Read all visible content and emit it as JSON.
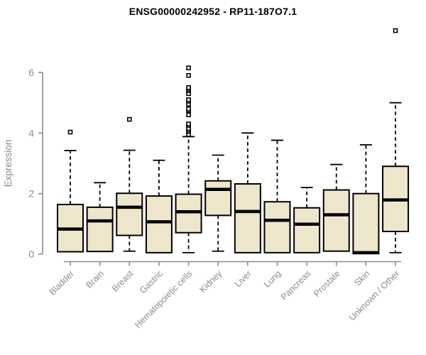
{
  "title": "ENSG00000242952 - RP11-187O7.1",
  "colors": {
    "box_fill": "#EDE6CB",
    "box_stroke": "#000000",
    "median_stroke": "#000000",
    "whisker_stroke": "#000000",
    "outlier_stroke": "#000000",
    "axis_color": "#8C8C8C",
    "tick_label_color": "#8C8C8C",
    "title_color": "#000000"
  },
  "chart_data": {
    "type": "boxplot",
    "title": "ENSG00000242952 - RP11-187O7.1",
    "xlabel": "",
    "ylabel": "Expression",
    "ylim": [
      0,
      6
    ],
    "yticks": [
      0,
      2,
      4,
      6
    ],
    "grid": false,
    "legend": false,
    "categories": [
      "Bladder",
      "Brain",
      "Breast",
      "Gastric",
      "Hematopoietic cells",
      "Kidney",
      "Liver",
      "Lung",
      "Pancreas",
      "Prostate",
      "Skin",
      "Unknown / Other"
    ],
    "series": [
      {
        "name": "Bladder",
        "low": 0.08,
        "q1": 0.08,
        "median": 0.83,
        "q3": 1.64,
        "high": 3.42,
        "outliers": [
          4.03
        ]
      },
      {
        "name": "Brain",
        "low": 0.09,
        "q1": 0.09,
        "median": 1.1,
        "q3": 1.55,
        "high": 2.36,
        "outliers": []
      },
      {
        "name": "Breast",
        "low": 0.1,
        "q1": 0.62,
        "median": 1.55,
        "q3": 2.01,
        "high": 3.43,
        "outliers": [
          4.45
        ]
      },
      {
        "name": "Gastric",
        "low": 0.05,
        "q1": 0.05,
        "median": 1.07,
        "q3": 1.92,
        "high": 3.1,
        "outliers": []
      },
      {
        "name": "Hematopoietic cells",
        "low": 0.05,
        "q1": 0.71,
        "median": 1.4,
        "q3": 1.98,
        "high": 3.88,
        "outliers": [
          3.95,
          4.05,
          4.1,
          4.15,
          4.25,
          4.3,
          4.6,
          4.75,
          4.8,
          4.95,
          5.05,
          5.1,
          5.3,
          5.4,
          5.45,
          5.5,
          5.9,
          6.15
        ]
      },
      {
        "name": "Kidney",
        "low": 0.1,
        "q1": 1.28,
        "median": 2.14,
        "q3": 2.42,
        "high": 3.27,
        "outliers": []
      },
      {
        "name": "Liver",
        "low": 0.05,
        "q1": 0.05,
        "median": 1.41,
        "q3": 2.32,
        "high": 4.0,
        "outliers": []
      },
      {
        "name": "Lung",
        "low": 0.05,
        "q1": 0.05,
        "median": 1.12,
        "q3": 1.73,
        "high": 3.76,
        "outliers": []
      },
      {
        "name": "Pancreas",
        "low": 0.05,
        "q1": 0.05,
        "median": 0.99,
        "q3": 1.53,
        "high": 2.2,
        "outliers": []
      },
      {
        "name": "Prostate",
        "low": 0.1,
        "q1": 0.1,
        "median": 1.3,
        "q3": 2.12,
        "high": 2.96,
        "outliers": []
      },
      {
        "name": "Skin",
        "low": 0.02,
        "q1": 0.02,
        "median": 0.05,
        "q3": 2.0,
        "high": 3.61,
        "outliers": []
      },
      {
        "name": "Unknown / Other",
        "low": 0.05,
        "q1": 0.75,
        "median": 1.79,
        "q3": 2.9,
        "high": 5.0,
        "outliers": [
          7.38
        ]
      }
    ]
  }
}
